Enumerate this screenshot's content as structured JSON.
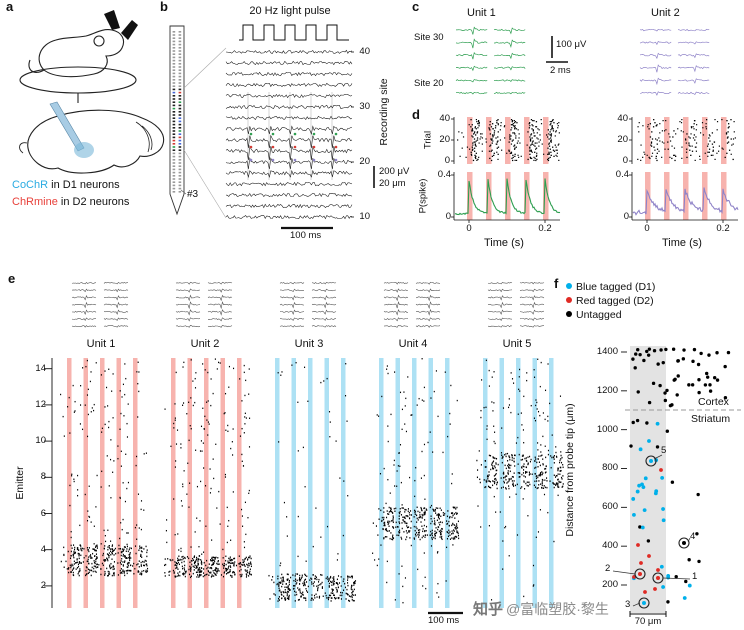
{
  "watermark": {
    "brand": "知乎",
    "handle": "@富临塑胶·黎生"
  },
  "colors": {
    "d1_cyan": "#29abe2",
    "d2_red": "#e8403a",
    "unit1_green": "#2e9e50",
    "unit2_purple": "#8f83c8",
    "stripe_red": "#f7b3ae",
    "stripe_blue": "#ade1f4",
    "tag_blue": "#00b0ea",
    "tag_red": "#e02a24",
    "untagged_black": "#000000"
  },
  "panel_a": {
    "label": "a",
    "legend1_name": "CoChR",
    "legend1_rest": " in D1 neurons",
    "legend2_name": "ChRmine",
    "legend2_rest": " in D2 neurons"
  },
  "panel_b": {
    "label": "b",
    "title": "20 Hz light pulse",
    "probe_id": "#3",
    "axis_label": "Recording site",
    "ticks": [
      "40",
      "30",
      "20",
      "10"
    ],
    "scale_v": "200 μV",
    "scale_depth": "20 μm",
    "scale_h": "100 ms"
  },
  "panel_c": {
    "label": "c",
    "unit1": "Unit 1",
    "unit2": "Unit 2",
    "site_top": "Site 30",
    "site_bottom": "Site 20",
    "scale_v": "100 μV",
    "scale_h": "2 ms"
  },
  "panel_d": {
    "label": "d",
    "raster_ylabel": "Trial",
    "raster_ticks": [
      "40",
      "20",
      "0"
    ],
    "psth_ylabel": "P(spike)",
    "psth_ticks": [
      "0.4",
      "0"
    ],
    "x_ticks": [
      "0",
      "0.2"
    ],
    "xlabel": "Time (s)"
  },
  "panel_e": {
    "label": "e",
    "ylabel": "Emitter",
    "y_ticks": [
      "14",
      "12",
      "10",
      "8",
      "6",
      "4",
      "2"
    ],
    "units": [
      "Unit 1",
      "Unit 2",
      "Unit 3",
      "Unit 4",
      "Unit 5"
    ],
    "scale_h": "100 ms"
  },
  "panel_f": {
    "label": "f",
    "legend": [
      {
        "label": "Blue tagged (D1)",
        "color": "#00b0ea"
      },
      {
        "label": "Red tagged (D2)",
        "color": "#e02a24"
      },
      {
        "label": "Untagged",
        "color": "#000000"
      }
    ],
    "ylabel": "Distance from probe tip (μm)",
    "y_ticks": [
      "1400",
      "1200",
      "1000",
      "800",
      "600",
      "400",
      "200"
    ],
    "region_upper": "Cortex",
    "region_lower": "Striatum",
    "scale_h": "70 μm",
    "unit_numbers": [
      "1",
      "2",
      "3",
      "4",
      "5"
    ]
  },
  "chart_data": {
    "type": "scatter",
    "panel": "f",
    "ylabel": "Distance from probe tip (μm)",
    "ylim": [
      100,
      1500
    ],
    "y_ticks": [
      200,
      400,
      600,
      800,
      1000,
      1200,
      1400
    ],
    "groups": [
      "Blue tagged (D1)",
      "Red tagged (D2)",
      "Untagged"
    ],
    "cortex_striatum_boundary_um": 1100,
    "probe_span_um": 70,
    "annotated_units": [
      {
        "id": "1",
        "tag": "Red tagged (D2)",
        "depth_um": 240
      },
      {
        "id": "2",
        "tag": "Red tagged (D2)",
        "depth_um": 260
      },
      {
        "id": "3",
        "tag": "Blue tagged (D1)",
        "depth_um": 110
      },
      {
        "id": "4",
        "tag": "Untagged",
        "depth_um": 420
      },
      {
        "id": "5",
        "tag": "Blue tagged (D1)",
        "depth_um": 840
      }
    ]
  }
}
